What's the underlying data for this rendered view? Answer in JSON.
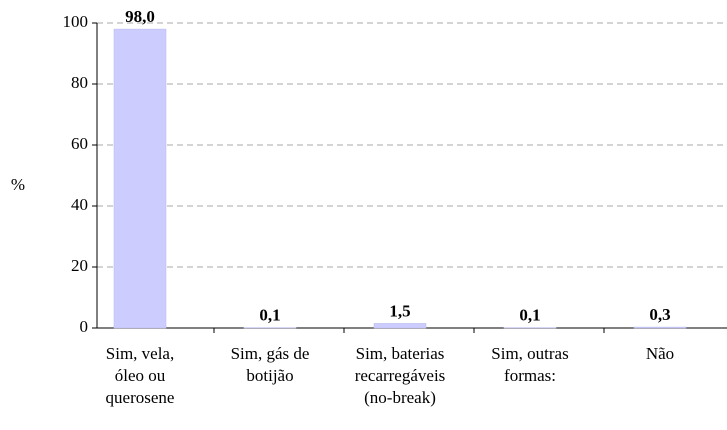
{
  "chart_data": {
    "type": "bar",
    "y_label": "%",
    "categories": [
      "Sim, vela,\nóleo ou\nquerosene",
      "Sim, gás de\nbotijão",
      "Sim, baterias\nrecarregáveis\n(no-break)",
      "Sim, outras\nformas:",
      "Não"
    ],
    "values": [
      98.0,
      0.1,
      1.5,
      0.1,
      0.3
    ],
    "value_labels": [
      "98,0",
      "0,1",
      "1,5",
      "0,1",
      "0,3"
    ],
    "color": "#ccccff",
    "ylim": [
      0,
      100
    ],
    "yticks": [
      0,
      20,
      40,
      60,
      80,
      100
    ],
    "grid": true
  }
}
